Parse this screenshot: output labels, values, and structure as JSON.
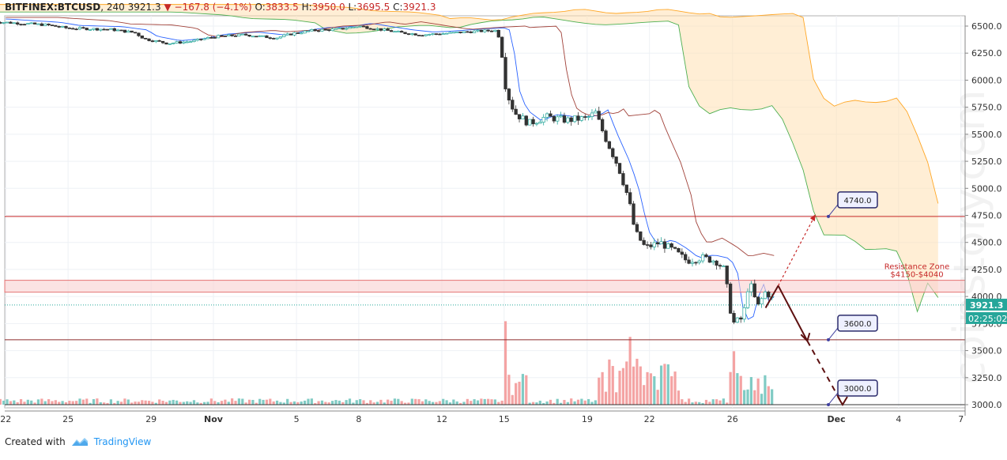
{
  "header": {
    "symbol": "BITFINEX:BTCUSD",
    "interval": "240",
    "last": "3921.3",
    "change_arrow": "▼",
    "change": "−167.8 (−4.1%)",
    "open_label": "O:",
    "open": "3833.5",
    "high_label": "H:",
    "high": "3950.0",
    "low_label": "L:",
    "low": "3695.5",
    "close_label": "C:",
    "close": "3921.3"
  },
  "footer": {
    "created_with": "Created with",
    "brand": "TradingView"
  },
  "watermark": "coinstory.com",
  "chart_data": {
    "type": "candlestick",
    "ylim": [
      2980,
      6580
    ],
    "y_ticks": [
      "6500.0",
      "6250.0",
      "6000.0",
      "5750.0",
      "5500.0",
      "5250.0",
      "5000.0",
      "4750.0",
      "4500.0",
      "4250.0",
      "4000.0",
      "3750.0",
      "3500.0",
      "3250.0",
      "3000.0"
    ],
    "y_tick_values": [
      6500,
      6250,
      6000,
      5750,
      5500,
      5250,
      5000,
      4750,
      4500,
      4250,
      4000,
      3750,
      3500,
      3250,
      3000
    ],
    "x_ticks": [
      "22",
      "25",
      "29",
      "Nov",
      "5",
      "8",
      "12",
      "15",
      "19",
      "22",
      "26",
      "Dec",
      "4",
      "7"
    ],
    "x_tick_days": [
      -10,
      -7,
      -3,
      0,
      4,
      7,
      11,
      14,
      18,
      21,
      25,
      30,
      33,
      36
    ],
    "last_price_label": "3921.3",
    "countdown_label": "02:25:02",
    "last_price": 3921.3,
    "colors": {
      "up": "#26a69a",
      "down": "#ef5350",
      "cloud": "#ffe0b2",
      "resistance": "#e57373",
      "support": "#8d2b2b",
      "last": "#26a69a"
    },
    "anchors": [
      [
        -10.5,
        6540
      ],
      [
        -8,
        6510
      ],
      [
        -7,
        6480
      ],
      [
        -5,
        6470
      ],
      [
        -3.8,
        6440
      ],
      [
        -3.3,
        6380
      ],
      [
        -2.2,
        6340
      ],
      [
        -1,
        6360
      ],
      [
        0,
        6400
      ],
      [
        1.5,
        6420
      ],
      [
        3,
        6390
      ],
      [
        3.8,
        6430
      ],
      [
        4.8,
        6460
      ],
      [
        6,
        6470
      ],
      [
        7,
        6500
      ],
      [
        8,
        6470
      ],
      [
        9,
        6440
      ],
      [
        10,
        6420
      ],
      [
        11,
        6430
      ],
      [
        12.5,
        6450
      ],
      [
        13.6,
        6460
      ],
      [
        13.8,
        6380
      ],
      [
        14.1,
        5900
      ],
      [
        14.5,
        5700
      ],
      [
        15.2,
        5600
      ],
      [
        16,
        5660
      ],
      [
        17,
        5630
      ],
      [
        18,
        5650
      ],
      [
        18.4,
        5700
      ],
      [
        18.8,
        5500
      ],
      [
        19.5,
        5200
      ],
      [
        20,
        4900
      ],
      [
        20.3,
        4600
      ],
      [
        20.8,
        4450
      ],
      [
        21.5,
        4500
      ],
      [
        22.2,
        4420
      ],
      [
        22.8,
        4330
      ],
      [
        23.5,
        4360
      ],
      [
        24.2,
        4330
      ],
      [
        24.6,
        4250
      ],
      [
        25,
        3750
      ],
      [
        25.5,
        3800
      ],
      [
        25.8,
        4150
      ],
      [
        26.2,
        3900
      ],
      [
        26.6,
        4050
      ],
      [
        27.0,
        3960
      ]
    ],
    "levels": [
      {
        "label": "4740.0",
        "value": 4740
      },
      {
        "label": "3600.0",
        "value": 3600
      },
      {
        "label": "3000.0",
        "value": 3000
      }
    ],
    "resistance_zone": {
      "label_line1": "Resistance Zone",
      "label_line2": "$4150-$4040",
      "high": 4150,
      "low": 4040
    },
    "projection_bull": [
      [
        27.2,
        4100
      ],
      [
        29.0,
        4760
      ]
    ],
    "projection_bear": [
      [
        27.2,
        4100
      ],
      [
        28.6,
        3590
      ],
      [
        30.3,
        3000
      ]
    ],
    "volume_spikes": [
      [
        14,
        320
      ],
      [
        20,
        260
      ],
      [
        25,
        205
      ],
      [
        21.5,
        150
      ],
      [
        19.5,
        130
      ]
    ]
  }
}
